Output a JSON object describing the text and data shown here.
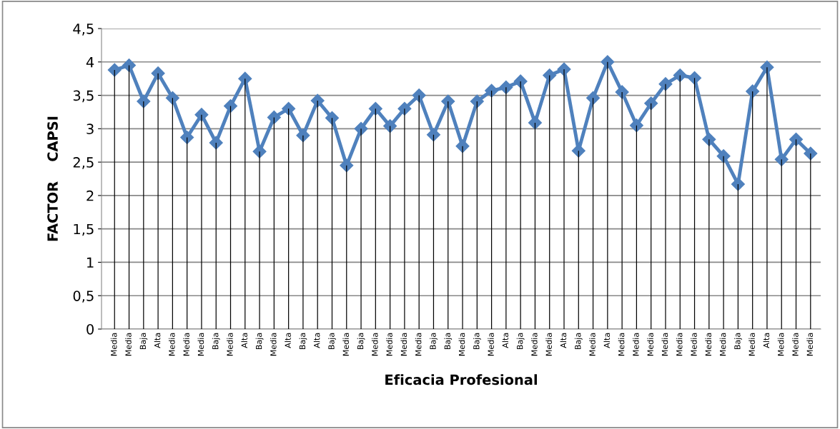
{
  "chart_data": {
    "type": "line",
    "xlabel": "Eficacia Profesional",
    "ylabel": "FACTOR    CAPSI",
    "categories": [
      "Media",
      "Media",
      "Baja",
      "Alta",
      "Media",
      "Media",
      "Media",
      "Baja",
      "Media",
      "Alta",
      "Baja",
      "Media",
      "Alta",
      "Baja",
      "Alta",
      "Baja",
      "Media",
      "Baja",
      "Media",
      "Media",
      "Media",
      "Media",
      "Baja",
      "Baja",
      "Media",
      "Baja",
      "Media",
      "Alta",
      "Baja",
      "Media",
      "Media",
      "Alta",
      "Baja",
      "Media",
      "Alta",
      "Media",
      "Media",
      "Media",
      "Media",
      "Media",
      "Media",
      "Media",
      "Media",
      "Baja",
      "Media",
      "Alta",
      "Media",
      "Media",
      "Media"
    ],
    "series": [
      {
        "type": "bar",
        "color": "#000000",
        "values": [
          3.88,
          3.95,
          3.41,
          3.83,
          3.46,
          2.87,
          3.21,
          2.79,
          3.34,
          3.75,
          2.66,
          3.17,
          3.3,
          2.9,
          3.42,
          3.16,
          2.45,
          3.0,
          3.3,
          3.04,
          3.3,
          3.5,
          2.91,
          3.41,
          2.74,
          3.41,
          3.57,
          3.62,
          3.71,
          3.09,
          3.8,
          3.89,
          2.67,
          3.46,
          4.0,
          3.55,
          3.05,
          3.38,
          3.67,
          3.8,
          3.76,
          2.84,
          2.59,
          2.17,
          3.56,
          3.92,
          2.54,
          2.84,
          2.63
        ]
      },
      {
        "color": "#4f81bd",
        "values": [
          3.88,
          3.95,
          3.41,
          3.83,
          3.46,
          2.87,
          3.21,
          2.79,
          3.34,
          3.75,
          2.66,
          3.17,
          3.3,
          2.9,
          3.42,
          3.16,
          2.45,
          3.0,
          3.3,
          3.04,
          3.3,
          3.5,
          2.91,
          3.41,
          2.74,
          3.41,
          3.57,
          3.62,
          3.71,
          3.09,
          3.8,
          3.89,
          2.67,
          3.46,
          4.0,
          3.55,
          3.05,
          3.38,
          3.67,
          3.8,
          3.76,
          2.84,
          2.59,
          2.17,
          3.56,
          3.92,
          2.54,
          2.84,
          2.63
        ]
      }
    ],
    "ylim": [
      0,
      4.5
    ],
    "yticks": [
      0,
      {
        "value": 0.5,
        "label": "0,5"
      },
      1,
      {
        "value": 1.5,
        "label": "1,5"
      },
      2,
      {
        "value": 2.5,
        "label": "2,5"
      },
      3,
      {
        "value": 3.5,
        "label": "3,5"
      },
      4,
      {
        "value": 4.5,
        "label": "4,5"
      }
    ],
    "grid": "y",
    "marker": "diamond",
    "line_style": "solid",
    "legend": false
  }
}
